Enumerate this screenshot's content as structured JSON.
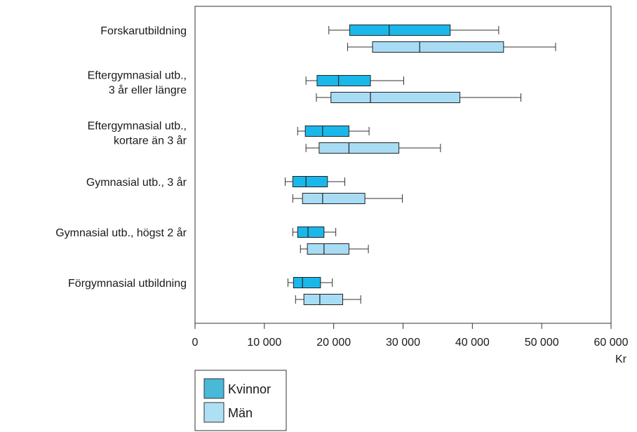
{
  "chart_data": {
    "type": "boxplot",
    "orientation": "horizontal",
    "xlim": [
      0,
      60000
    ],
    "x_ticks": [
      0,
      10000,
      20000,
      30000,
      40000,
      50000,
      60000
    ],
    "x_tick_labels": [
      "0",
      "10 000",
      "20 000",
      "30 000",
      "40 000",
      "50 000",
      "60 000"
    ],
    "x_unit": "Kr",
    "grid": false,
    "legend_position": "bottom-left",
    "series": [
      {
        "name": "Kvinnor",
        "color": "#1ab8ea"
      },
      {
        "name": "Män",
        "color": "#a8dcf4"
      }
    ],
    "categories": [
      {
        "label_lines": [
          "Forskarutbildning"
        ],
        "boxes": [
          {
            "series": "Kvinnor",
            "min": 19300,
            "q1": 22300,
            "median": 28000,
            "q3": 36800,
            "max": 43800
          },
          {
            "series": "Män",
            "min": 22000,
            "q1": 25600,
            "median": 32400,
            "q3": 44500,
            "max": 52000
          }
        ]
      },
      {
        "label_lines": [
          "Eftergymnasial utb.,",
          "3 år eller längre"
        ],
        "boxes": [
          {
            "series": "Kvinnor",
            "min": 16000,
            "q1": 17600,
            "median": 20700,
            "q3": 25300,
            "max": 30100
          },
          {
            "series": "Män",
            "min": 17500,
            "q1": 19600,
            "median": 25300,
            "q3": 38200,
            "max": 47000
          }
        ]
      },
      {
        "label_lines": [
          "Eftergymnasial utb.,",
          "kortare än 3 år"
        ],
        "boxes": [
          {
            "series": "Kvinnor",
            "min": 14800,
            "q1": 15900,
            "median": 18400,
            "q3": 22200,
            "max": 25100
          },
          {
            "series": "Män",
            "min": 16000,
            "q1": 17900,
            "median": 22200,
            "q3": 29400,
            "max": 35400
          }
        ]
      },
      {
        "label_lines": [
          "Gymnasial utb., 3 år"
        ],
        "boxes": [
          {
            "series": "Kvinnor",
            "min": 13000,
            "q1": 14100,
            "median": 16000,
            "q3": 19100,
            "max": 21600
          },
          {
            "series": "Män",
            "min": 14100,
            "q1": 15500,
            "median": 18400,
            "q3": 24500,
            "max": 29900
          }
        ]
      },
      {
        "label_lines": [
          "Gymnasial utb., högst 2 år"
        ],
        "boxes": [
          {
            "series": "Kvinnor",
            "min": 14100,
            "q1": 14800,
            "median": 16300,
            "q3": 18600,
            "max": 20300
          },
          {
            "series": "Män",
            "min": 15200,
            "q1": 16200,
            "median": 18600,
            "q3": 22200,
            "max": 25000
          }
        ]
      },
      {
        "label_lines": [
          "Förgymnasial utbildning"
        ],
        "boxes": [
          {
            "series": "Kvinnor",
            "min": 13400,
            "q1": 14200,
            "median": 15500,
            "q3": 18100,
            "max": 19800
          },
          {
            "series": "Män",
            "min": 14500,
            "q1": 15700,
            "median": 18000,
            "q3": 21300,
            "max": 23900
          }
        ]
      }
    ]
  }
}
